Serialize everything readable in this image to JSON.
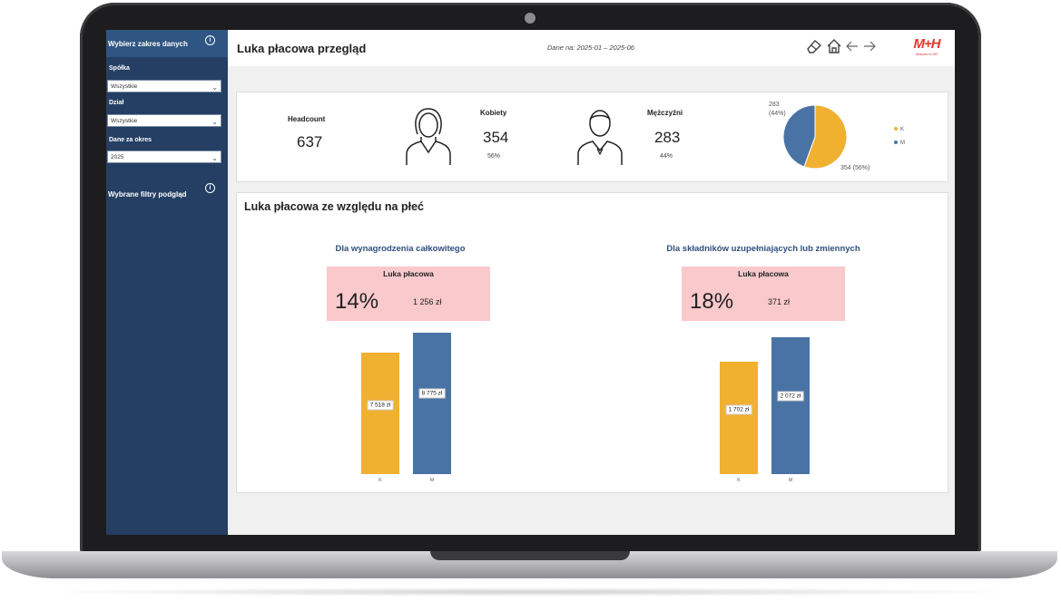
{
  "sidebar": {
    "title": "Wybierz zakres danych",
    "filters": [
      {
        "label": "Spółka",
        "value": "Wszystkie"
      },
      {
        "label": "Dział",
        "value": "Wszystkie"
      },
      {
        "label": "Dane za okres",
        "value": "2025"
      }
    ],
    "selected_filters_title": "Wybrane filtry podgląd",
    "info_glyph": "i"
  },
  "header": {
    "title": "Luka płacowa przegląd",
    "date_range": "Dane na: 2025-01 – 2025-06",
    "logo_text": "M+H",
    "logo_subtext": "Mazars w HR",
    "icons": [
      "eraser-icon",
      "home-icon",
      "arrow-left-icon",
      "arrow-right-icon"
    ]
  },
  "kpis": {
    "headcount": {
      "label": "Headcount",
      "value": "637"
    },
    "women": {
      "label": "Kobiety",
      "value": "354",
      "pct": "56%"
    },
    "men": {
      "label": "Mężczyźni",
      "value": "283",
      "pct": "44%"
    },
    "pie": {
      "label_m": "283",
      "label_m_pct": "(44%)",
      "label_k": "354 (56%)",
      "legend": [
        {
          "key": "K",
          "color": "#f0b030"
        },
        {
          "key": "M",
          "color": "#4a73a5"
        }
      ]
    }
  },
  "gap_section": {
    "title": "Luka płacowa ze względu na płeć",
    "panels": [
      {
        "subtitle": "Dla wynagrodzenia całkowitego",
        "box_label": "Luka płacowa",
        "gap_pct": "14%",
        "gap_amount": "1 256 zł"
      },
      {
        "subtitle": "Dla składników uzupełniających lub zmiennych",
        "box_label": "Luka płacowa",
        "gap_pct": "18%",
        "gap_amount": "371 zł"
      }
    ]
  },
  "chart_data": [
    {
      "type": "bar",
      "categories": [
        "K",
        "M"
      ],
      "values": [
        7518,
        8775
      ],
      "data_labels": [
        "7 518 zł",
        "8 775 zł"
      ],
      "colors": [
        "#f0b030",
        "#4a73a5"
      ],
      "ylim": [
        0,
        8775
      ]
    },
    {
      "type": "bar",
      "categories": [
        "K",
        "M"
      ],
      "values": [
        1702,
        2072
      ],
      "data_labels": [
        "1 702 zł",
        "2 072 zł"
      ],
      "colors": [
        "#f0b030",
        "#4a73a5"
      ],
      "ylim": [
        0,
        2072
      ]
    },
    {
      "type": "pie",
      "categories": [
        "K",
        "M"
      ],
      "values": [
        354,
        283
      ],
      "colors": [
        "#f0b030",
        "#4a73a5"
      ]
    }
  ]
}
